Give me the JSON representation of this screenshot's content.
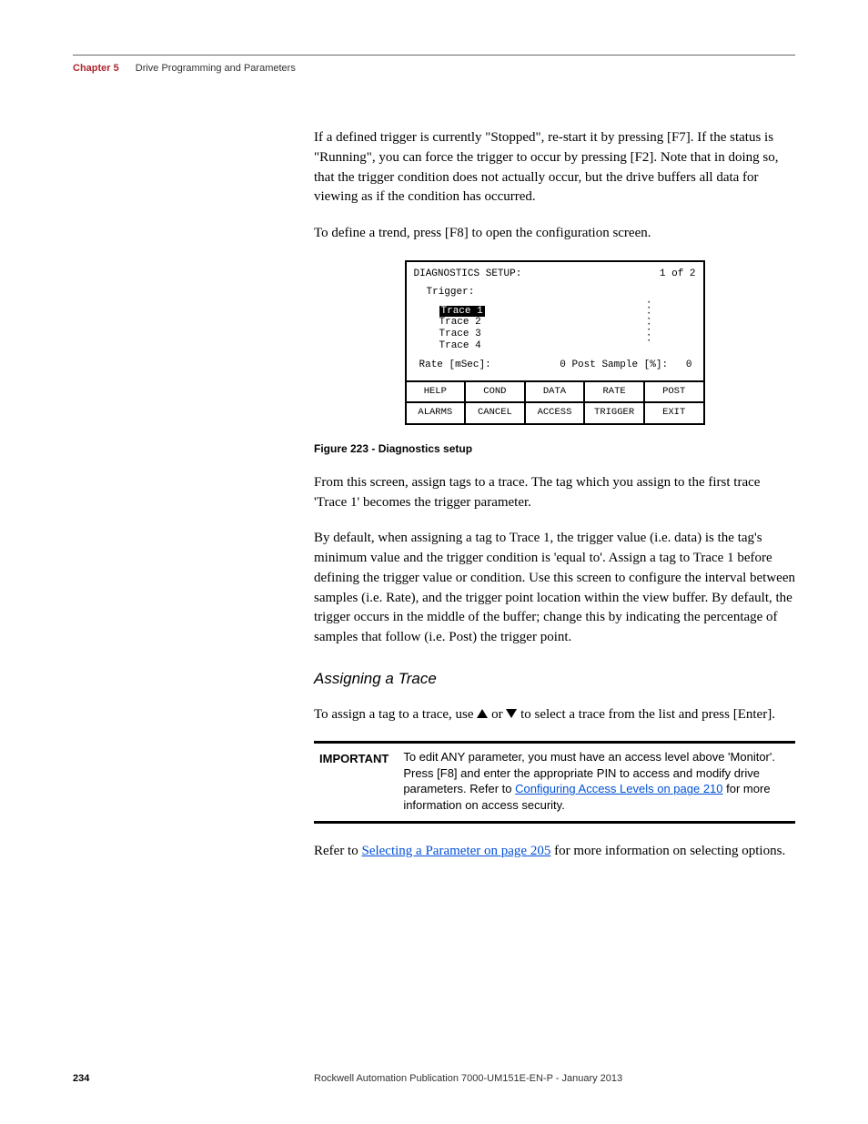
{
  "header": {
    "chapter": "Chapter 5",
    "title": "Drive Programming and Parameters"
  },
  "paragraphs": {
    "p1": "If a defined trigger is currently \"Stopped\", re-start it by pressing [F7]. If the status is \"Running\", you can force the trigger to occur by pressing [F2]. Note that in doing so, that the trigger condition does not actually occur, but the drive buffers all data for viewing as if the condition has occurred.",
    "p2": "To define a trend, press [F8] to open the configuration screen.",
    "p3": "From this screen, assign tags to a trace. The tag which you assign to the first trace 'Trace 1' becomes the trigger parameter.",
    "p4": "By default, when assigning a tag to Trace 1, the trigger value (i.e. data) is the tag's minimum value and the trigger condition is 'equal to'. Assign a tag to Trace 1 before defining the trigger value or condition. Use this screen to configure the interval between samples (i.e. Rate), and the trigger point location within the view buffer. By default, the trigger occurs in the middle of the buffer; change this by indicating the percentage of samples that follow (i.e. Post) the trigger point.",
    "p5_before": "To assign a tag to a trace, use ",
    "p5_mid": " or ",
    "p5_after": " to select a trace from the list and press [Enter].",
    "p6_before": "Refer to ",
    "p6_link": "Selecting a Parameter on page 205",
    "p6_after": " for more information on selecting options."
  },
  "figure": {
    "title": "DIAGNOSTICS SETUP:",
    "page_indicator": "1 of  2",
    "trigger_label": "Trigger:",
    "traces": [
      "Trace 1",
      "Trace 2",
      "Trace 3",
      "Trace 4"
    ],
    "selected_trace_index": 0,
    "rate_label": "Rate [mSec]:",
    "rate_value": "0",
    "post_label": "Post Sample [%]:",
    "post_value": "0",
    "row1": [
      "HELP",
      "COND",
      "DATA",
      "RATE",
      "POST"
    ],
    "row2": [
      "ALARMS",
      "CANCEL",
      "ACCESS",
      "TRIGGER",
      "EXIT"
    ]
  },
  "figure_caption": "Figure 223 - Diagnostics setup",
  "subheading": "Assigning a Trace",
  "important": {
    "label": "IMPORTANT",
    "text_before": "To edit ANY parameter, you must have an access level above 'Monitor'. Press [F8] and enter the appropriate PIN to access and modify drive parameters. Refer to ",
    "link": "Configuring Access Levels on page 210",
    "text_after": " for more information on access security."
  },
  "footer": {
    "page": "234",
    "publication": "Rockwell Automation Publication 7000-UM151E-EN-P - January 2013"
  }
}
